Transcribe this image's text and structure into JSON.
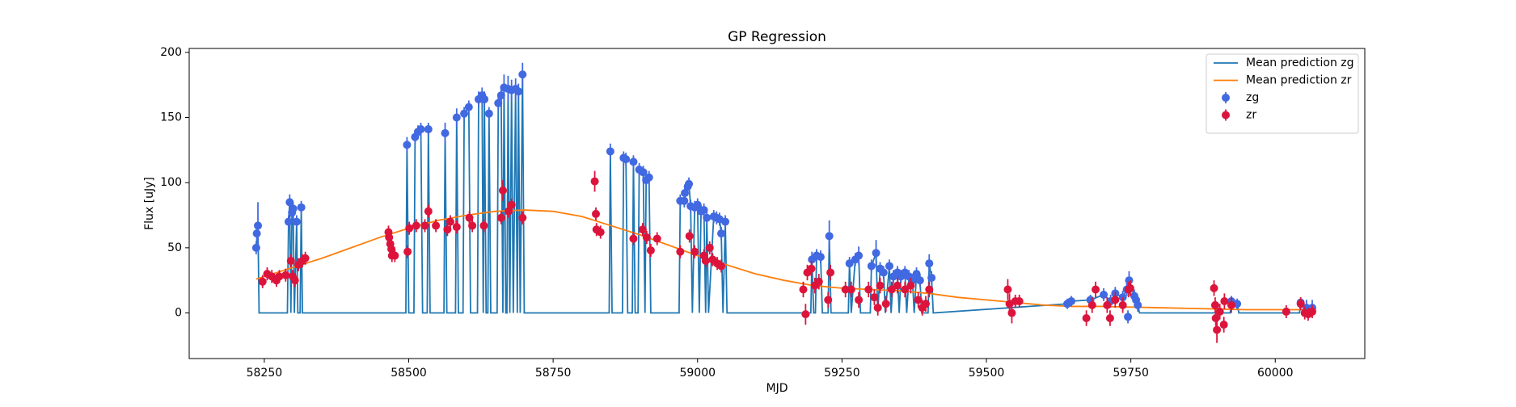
{
  "chart_data": {
    "type": "line",
    "title": "GP Regression",
    "x_label": "MJD",
    "y_label": "Flux [uJy]",
    "xlim": [
      58120,
      60155
    ],
    "ylim": [
      -35,
      203
    ],
    "xticks": [
      58250,
      58500,
      58750,
      59000,
      59250,
      59500,
      59750,
      60000
    ],
    "yticks": [
      0,
      50,
      100,
      150,
      200
    ],
    "legend": "upper right",
    "series": [
      {
        "name": "Mean prediction zg",
        "kind": "line",
        "color": "#1f77b4",
        "x": [
          58236,
          58239,
          58241,
          58290,
          58292,
          58294,
          58296,
          58298,
          58300,
          58302,
          58306,
          58308,
          58312,
          58314,
          58316,
          58495,
          58497,
          58500,
          58509,
          58511,
          58516,
          58521,
          58524,
          58532,
          58534,
          58537,
          58561,
          58563,
          58566,
          58581,
          58583,
          58586,
          58594,
          58596,
          58604,
          58607,
          58619,
          58621,
          58627,
          58629,
          58631,
          58634,
          58637,
          58639,
          58642,
          58653,
          58655,
          58660,
          58663,
          58665,
          58668,
          58670,
          58672,
          58675,
          58678,
          58681,
          58685,
          58688,
          58690,
          58693,
          58697,
          58700,
          58847,
          58849,
          58852,
          58870,
          58872,
          58876,
          58879,
          58887,
          58889,
          58892,
          58897,
          58899,
          58906,
          58909,
          58911,
          58916,
          58919,
          58968,
          58970,
          58977,
          58978,
          58983,
          58985,
          58988,
          58991,
          58995,
          59000,
          59003,
          59006,
          59011,
          59014,
          59016,
          59019,
          59028,
          59033,
          59038,
          59041,
          59044,
          59048,
          59051,
          59196,
          59198,
          59201,
          59204,
          59206,
          59213,
          59216,
          59226,
          59228,
          59231,
          59261,
          59263,
          59266,
          59273,
          59279,
          59282,
          59299,
          59301,
          59309,
          59312,
          59316,
          59322,
          59325,
          59332,
          59335,
          59339,
          59346,
          59349,
          59352,
          59359,
          59362,
          59366,
          59372,
          59375,
          59379,
          59385,
          59388,
          59399,
          59401,
          59405,
          59408,
          59640,
          59647,
          59680,
          59703,
          59715,
          59723,
          59736,
          59743,
          59747,
          59756,
          59759,
          59762,
          59765,
          59922,
          59924,
          59934,
          59937,
          60042,
          60044,
          60054,
          60064
        ],
        "values": [
          50,
          67,
          0,
          0,
          70,
          85,
          0,
          77,
          80,
          0,
          70,
          0,
          0,
          81,
          0,
          0,
          129,
          0,
          0,
          135,
          139,
          141,
          0,
          0,
          141,
          0,
          0,
          138,
          0,
          0,
          150,
          0,
          0,
          153,
          158,
          0,
          0,
          164,
          167,
          0,
          164,
          0,
          0,
          153,
          0,
          0,
          161,
          167,
          0,
          173,
          0,
          0,
          172,
          0,
          171,
          0,
          172,
          0,
          170,
          0,
          183,
          0,
          0,
          124,
          0,
          0,
          119,
          118,
          0,
          0,
          116,
          0,
          0,
          110,
          108,
          0,
          102,
          104,
          0,
          0,
          86,
          86,
          92,
          97,
          99,
          82,
          0,
          81,
          83,
          0,
          78,
          79,
          0,
          73,
          0,
          74,
          73,
          72,
          61,
          0,
          70,
          0,
          0,
          41,
          0,
          0,
          44,
          43,
          0,
          0,
          59,
          0,
          0,
          38,
          0,
          41,
          44,
          0,
          0,
          36,
          46,
          0,
          34,
          31,
          0,
          36,
          0,
          28,
          31,
          0,
          28,
          31,
          0,
          28,
          25,
          0,
          30,
          25,
          0,
          0,
          38,
          27,
          0,
          7,
          9,
          10,
          14,
          9,
          15,
          12,
          18,
          25,
          13,
          10,
          6,
          0,
          0,
          9,
          7,
          0,
          0,
          8,
          4,
          4
        ]
      },
      {
        "name": "Mean prediction zr",
        "kind": "line",
        "color": "#ff7f0e",
        "x": [
          58236,
          58300,
          58350,
          58400,
          58450,
          58500,
          58550,
          58600,
          58650,
          58700,
          58750,
          58800,
          58850,
          58900,
          58950,
          59000,
          59050,
          59100,
          59150,
          59200,
          59250,
          59300,
          59350,
          59400,
          59450,
          59500,
          59550,
          59600,
          59650,
          59700,
          59750,
          59800,
          59850,
          59900,
          59950,
          60000,
          60064
        ],
        "values": [
          26,
          35,
          42,
          50,
          58,
          65,
          71,
          75,
          78,
          79,
          78,
          74,
          67,
          60,
          52,
          44,
          37,
          30,
          25,
          21,
          19,
          18,
          17,
          15,
          12,
          10,
          8,
          6,
          5,
          5,
          4.5,
          4,
          3.5,
          3,
          2.5,
          2.5,
          2.5
        ]
      },
      {
        "name": "zg",
        "kind": "errorbar",
        "color": "#4169e1",
        "x": [
          58236,
          58237,
          58239,
          58294,
          58292,
          58298,
          58300,
          58306,
          58314,
          58497,
          58511,
          58516,
          58521,
          58534,
          58563,
          58583,
          58596,
          58604,
          58621,
          58627,
          58631,
          58639,
          58655,
          58660,
          58665,
          58672,
          58678,
          58685,
          58690,
          58697,
          58849,
          58872,
          58876,
          58889,
          58899,
          58906,
          58911,
          58916,
          58970,
          58977,
          58978,
          58983,
          58985,
          58988,
          58995,
          59000,
          59006,
          59011,
          59016,
          59028,
          59033,
          59038,
          59041,
          59048,
          59198,
          59206,
          59213,
          59228,
          59263,
          59273,
          59279,
          59301,
          59309,
          59316,
          59322,
          59332,
          59339,
          59346,
          59352,
          59359,
          59366,
          59372,
          59379,
          59385,
          59401,
          59405,
          59640,
          59647,
          59680,
          59703,
          59715,
          59723,
          59736,
          59743,
          59747,
          59756,
          59759,
          59762,
          59745,
          59924,
          59934,
          60044,
          60054,
          60064
        ],
        "values": [
          50,
          61,
          67,
          85,
          70,
          77,
          80,
          70,
          81,
          129,
          135,
          139,
          141,
          141,
          138,
          150,
          153,
          158,
          164,
          167,
          164,
          153,
          161,
          167,
          173,
          172,
          171,
          172,
          170,
          183,
          124,
          119,
          118,
          116,
          110,
          108,
          102,
          104,
          86,
          86,
          92,
          97,
          99,
          82,
          81,
          83,
          78,
          79,
          73,
          74,
          73,
          72,
          61,
          70,
          41,
          44,
          43,
          59,
          38,
          41,
          44,
          36,
          46,
          34,
          31,
          36,
          28,
          31,
          28,
          31,
          28,
          25,
          30,
          25,
          38,
          27,
          7,
          9,
          10,
          14,
          9,
          15,
          12,
          18,
          25,
          13,
          10,
          6,
          -3,
          9,
          7,
          8,
          4,
          4
        ],
        "errors": [
          5,
          5,
          18,
          6,
          5,
          5,
          5,
          5,
          5,
          6,
          5,
          5,
          5,
          5,
          8,
          7,
          5,
          5,
          6,
          6,
          6,
          5,
          6,
          7,
          10,
          10,
          8,
          8,
          6,
          9,
          6,
          5,
          5,
          5,
          5,
          5,
          5,
          5,
          5,
          5,
          5,
          5,
          5,
          5,
          5,
          5,
          5,
          5,
          5,
          5,
          5,
          5,
          5,
          5,
          6,
          5,
          5,
          12,
          5,
          5,
          7,
          5,
          10,
          5,
          5,
          5,
          5,
          5,
          5,
          5,
          5,
          5,
          5,
          5,
          7,
          5,
          4,
          4,
          4,
          5,
          5,
          5,
          5,
          5,
          7,
          5,
          5,
          5,
          5,
          4,
          4,
          4,
          6,
          6
        ]
      },
      {
        "name": "zr",
        "kind": "errorbar",
        "color": "#dc143c",
        "x": [
          58247,
          58255,
          58263,
          58271,
          58276,
          58287,
          58296,
          58299,
          58303,
          58309,
          58316,
          58321,
          58465,
          58466,
          58468,
          58470,
          58471,
          58476,
          58498,
          58501,
          58513,
          58528,
          58534,
          58547,
          58567,
          58572,
          58583,
          58605,
          58610,
          58630,
          58660,
          58663,
          58673,
          58678,
          58697,
          58822,
          58824,
          58825,
          58832,
          58889,
          58905,
          58912,
          58919,
          58930,
          58970,
          58986,
          58995,
          59011,
          59014,
          59021,
          59026,
          59034,
          59041,
          59183,
          59187,
          59190,
          59197,
          59203,
          59210,
          59226,
          59230,
          59256,
          59266,
          59279,
          59296,
          59306,
          59312,
          59316,
          59326,
          59336,
          59346,
          59359,
          59369,
          59382,
          59389,
          59395,
          59401,
          59537,
          59540,
          59544,
          59550,
          59557,
          59673,
          59683,
          59689,
          59709,
          59714,
          59723,
          59736,
          59746,
          59749,
          59894,
          59896,
          59897,
          59899,
          59904,
          59912,
          59911,
          59924,
          60019,
          60044,
          60051,
          60057,
          60064
        ],
        "values": [
          24,
          30,
          28,
          25,
          28,
          29,
          40,
          28,
          25,
          37,
          40,
          42,
          62,
          58,
          53,
          49,
          44,
          44,
          47,
          65,
          67,
          67,
          78,
          67,
          64,
          70,
          66,
          73,
          67,
          67,
          73,
          94,
          78,
          83,
          73,
          101,
          76,
          64,
          62,
          57,
          64,
          58,
          48,
          57,
          47,
          59,
          47,
          44,
          40,
          50,
          41,
          38,
          36,
          18,
          -1,
          31,
          34,
          21,
          24,
          10,
          31,
          18,
          18,
          10,
          18,
          12,
          4,
          21,
          7,
          18,
          21,
          18,
          21,
          10,
          4,
          7,
          18,
          18,
          7,
          0,
          9,
          9,
          -4,
          6,
          18,
          6,
          -4,
          10,
          6,
          18,
          19,
          19,
          6,
          -4,
          -13,
          1,
          9,
          -9,
          6,
          1,
          7,
          0,
          -1,
          1
        ],
        "errors": [
          5,
          5,
          5,
          5,
          5,
          5,
          5,
          5,
          5,
          5,
          5,
          5,
          5,
          5,
          5,
          5,
          5,
          5,
          5,
          5,
          5,
          5,
          5,
          5,
          5,
          5,
          5,
          5,
          5,
          5,
          5,
          8,
          5,
          5,
          5,
          8,
          5,
          5,
          5,
          5,
          5,
          5,
          5,
          5,
          5,
          5,
          5,
          5,
          5,
          5,
          5,
          5,
          5,
          6,
          8,
          6,
          6,
          6,
          6,
          6,
          6,
          6,
          6,
          6,
          6,
          6,
          6,
          6,
          6,
          6,
          6,
          6,
          6,
          6,
          6,
          6,
          6,
          8,
          8,
          8,
          5,
          5,
          6,
          6,
          6,
          6,
          6,
          6,
          6,
          6,
          6,
          6,
          6,
          6,
          10,
          6,
          6,
          6,
          6,
          5,
          5,
          5,
          5,
          5
        ]
      }
    ]
  }
}
